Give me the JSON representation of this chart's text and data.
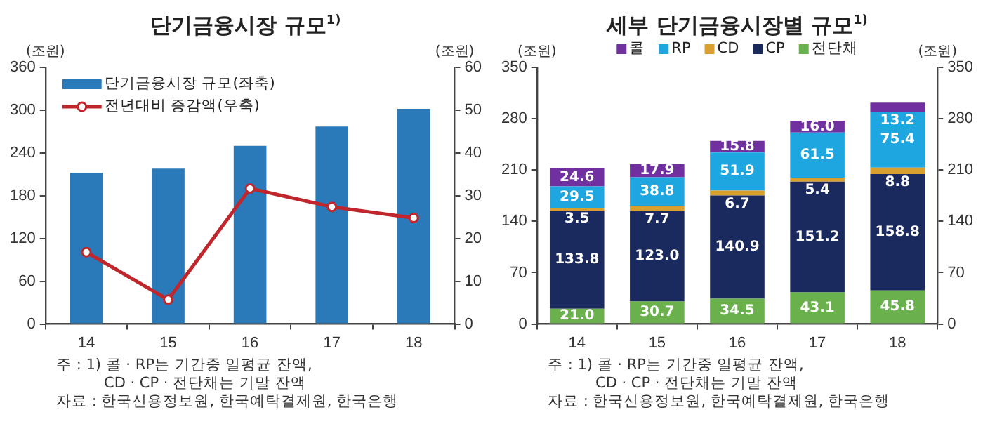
{
  "chart_data": [
    {
      "type": "bar",
      "title": "단기금융시장 규모$^{1)}$",
      "ylabel": "(조원)",
      "y2label": "(조원)",
      "categories": [
        "14",
        "15",
        "16",
        "17",
        "18"
      ],
      "series": [
        {
          "name": "단기금융시장 규모(좌축)",
          "type": "bar",
          "color": "#2a7ab9",
          "values": [
            212,
            218,
            250,
            277,
            302
          ]
        },
        {
          "name": "전년대비 증감액(우축)",
          "type": "line",
          "axis": "y2",
          "color": "#c0272d",
          "marker": "circle",
          "values": [
            16.8,
            5.7,
            31.7,
            27.4,
            24.8
          ]
        }
      ],
      "ylim": [
        0,
        360
      ],
      "yticks": [
        0,
        60,
        120,
        180,
        240,
        300,
        360
      ],
      "y2lim": [
        0,
        60
      ],
      "y2ticks": [
        0,
        10,
        20,
        30,
        40,
        50,
        60
      ],
      "grid": false,
      "legend": "top left",
      "annotations": [
        "주 : 1) 콜 · RP는 기간중 일평균 잔액,",
        "CD · CP · 전단채는 기말 잔액",
        "자료 : 한국신용정보원, 한국예탁결제원, 한국은행"
      ]
    },
    {
      "type": "bar",
      "stacked": true,
      "title": "세부 단기금융시장별 규모$^{1)}$",
      "ylabel": "(조원)",
      "y2label": "(조원)",
      "categories": [
        "14",
        "15",
        "16",
        "17",
        "18"
      ],
      "series": [
        {
          "name": "전단채",
          "color": "#6ab04c",
          "values": [
            21.0,
            30.7,
            34.5,
            43.1,
            45.8
          ],
          "value_labels": [
            "21.0",
            "30.7",
            "34.5",
            "43.1",
            "45.8"
          ]
        },
        {
          "name": "CP",
          "color": "#1b2a5e",
          "values": [
            133.8,
            123.0,
            140.9,
            151.2,
            158.8
          ],
          "value_labels": [
            "133.8",
            "123.0",
            "140.9",
            "151.2",
            "158.8"
          ]
        },
        {
          "name": "CD",
          "color": "#d9a030",
          "values": [
            3.5,
            7.7,
            6.7,
            5.4,
            8.8
          ],
          "value_labels": [
            "3.5",
            "7.7",
            "6.7",
            "5.4",
            "8.8"
          ]
        },
        {
          "name": "RP",
          "color": "#1ea6e0",
          "values": [
            29.5,
            38.8,
            51.9,
            61.5,
            75.4
          ],
          "value_labels": [
            "29.5",
            "38.8",
            "51.9",
            "61.5",
            "75.4"
          ]
        },
        {
          "name": "콜",
          "color": "#7030a0",
          "values": [
            24.6,
            17.9,
            15.8,
            16.0,
            13.2
          ],
          "value_labels": [
            "24.6",
            "17.9",
            "15.8",
            "16.0",
            "13.2"
          ]
        }
      ],
      "ylim": [
        0,
        350
      ],
      "yticks": [
        0,
        70,
        140,
        210,
        280,
        350
      ],
      "y2lim": [
        0,
        350
      ],
      "y2ticks": [
        0,
        70,
        140,
        210,
        280,
        350
      ],
      "grid": false,
      "legend": "top",
      "annotations": [
        "주 : 1) 콜 · RP는 기간중 일평균 잔액,",
        "CD · CP · 전단채는 기말 잔액",
        "자료 : 한국신용정보원, 한국예탁결제원, 한국은행"
      ]
    }
  ]
}
